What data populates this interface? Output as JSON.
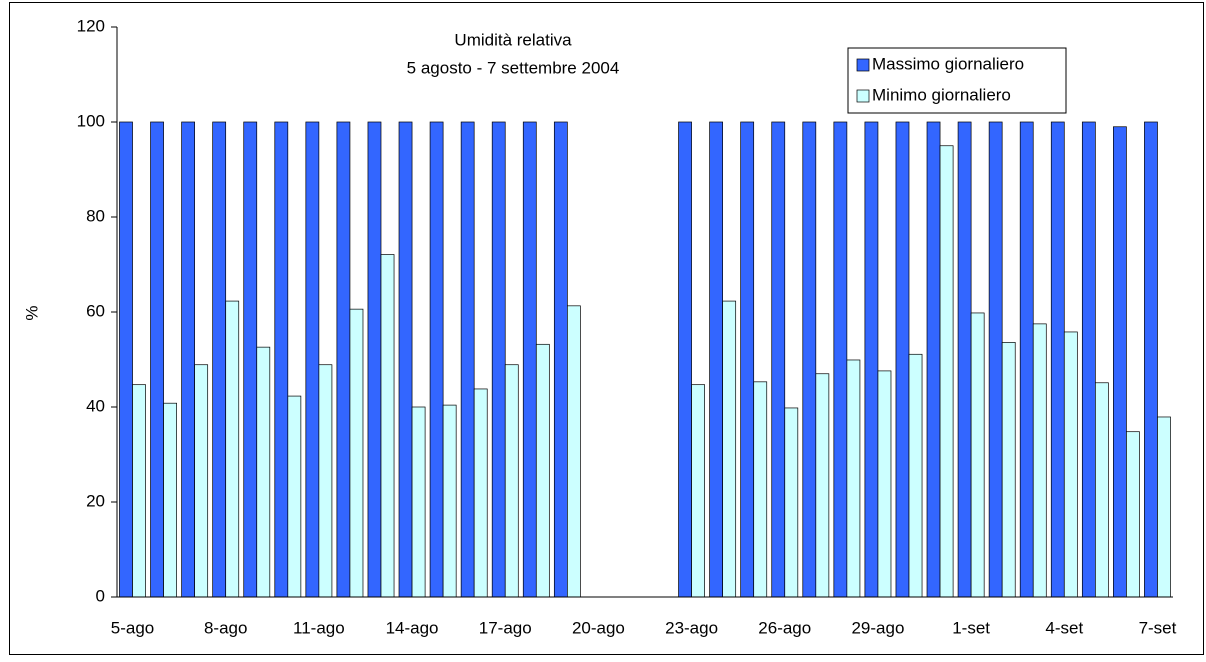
{
  "chart_data": {
    "type": "bar",
    "title": "Umidità relativa",
    "subtitle": "5 agosto - 7 settembre 2004",
    "y_label": "%",
    "categories": [
      "5-ago",
      null,
      null,
      "8-ago",
      null,
      null,
      "11-ago",
      null,
      null,
      "14-ago",
      null,
      null,
      "17-ago",
      null,
      null,
      "20-ago",
      null,
      null,
      "23-ago",
      null,
      null,
      "26-ago",
      null,
      null,
      "29-ago",
      null,
      null,
      "1-set",
      null,
      null,
      "4-set",
      null,
      null,
      "7-set"
    ],
    "series": [
      {
        "name": "Massimo giornaliero",
        "color": "#3366ff",
        "values": [
          100,
          100,
          100,
          100,
          100,
          100,
          100,
          100,
          100,
          100,
          100,
          100,
          100,
          100,
          100,
          null,
          null,
          null,
          100,
          100,
          100,
          100,
          100,
          100,
          100,
          100,
          100,
          100,
          100,
          100,
          100,
          100,
          99,
          100
        ]
      },
      {
        "name": "Minimo giornaliero",
        "color": "#ccffff",
        "values": [
          44.7,
          40.8,
          48.9,
          62.3,
          52.6,
          42.3,
          48.9,
          60.6,
          72.1,
          40.0,
          40.4,
          43.8,
          48.9,
          53.2,
          61.3,
          null,
          null,
          null,
          44.7,
          62.3,
          45.3,
          39.8,
          47.0,
          49.9,
          47.6,
          51.1,
          95.0,
          59.8,
          53.6,
          57.5,
          55.8,
          45.1,
          34.8,
          37.9
        ]
      }
    ],
    "ylim": [
      0,
      120
    ],
    "yticks": [
      0,
      20,
      40,
      60,
      80,
      100,
      120
    ],
    "grid": false,
    "legend": "upper right"
  }
}
